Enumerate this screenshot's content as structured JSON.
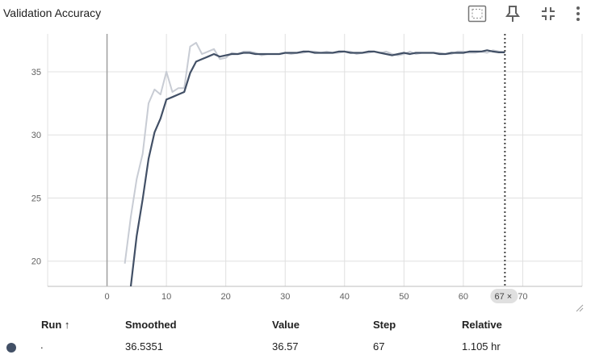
{
  "title": "Validation Accuracy",
  "toolbar": {
    "icons": [
      "fit-domain-icon",
      "pin-icon",
      "collapse-icon",
      "more-vert-icon"
    ]
  },
  "colors": {
    "smoothed": "#425066",
    "raw": "#c8ccd4",
    "grid": "#e0e0e0",
    "axis_text": "#616161",
    "cursor": "#424242",
    "run_dot": "#425066"
  },
  "chart_data": {
    "type": "line",
    "title": "Validation Accuracy",
    "xlabel": "",
    "ylabel": "",
    "xlim": [
      -10,
      80
    ],
    "ylim": [
      18,
      38
    ],
    "xticks": [
      0,
      10,
      20,
      30,
      40,
      50,
      60,
      70
    ],
    "yticks": [
      20,
      25,
      30,
      35
    ],
    "grid": true,
    "series": [
      {
        "role": "raw",
        "x": [
          3,
          4,
          5,
          6,
          7,
          8,
          9,
          10,
          11,
          12,
          13,
          14,
          15,
          16,
          17,
          18,
          19,
          20,
          21,
          22,
          23,
          24,
          25,
          26,
          27,
          28,
          29,
          30,
          31,
          32,
          33,
          34,
          35,
          36,
          37,
          38,
          39,
          40,
          41,
          42,
          43,
          44,
          45,
          46,
          47,
          48,
          49,
          50,
          51,
          52,
          53,
          54,
          55,
          56,
          57,
          58,
          59,
          60,
          61,
          62,
          63,
          64,
          65,
          66,
          67
        ],
        "y": [
          19.8,
          23.5,
          26.5,
          28.5,
          32.5,
          33.6,
          33.2,
          35.0,
          33.4,
          33.7,
          33.7,
          37.0,
          37.3,
          36.4,
          36.6,
          36.8,
          36.0,
          36.1,
          36.5,
          36.4,
          36.6,
          36.6,
          36.5,
          36.3,
          36.4,
          36.4,
          36.4,
          36.5,
          36.4,
          36.5,
          36.5,
          36.6,
          36.6,
          36.5,
          36.6,
          36.5,
          36.5,
          36.6,
          36.6,
          36.4,
          36.5,
          36.5,
          36.6,
          36.5,
          36.6,
          36.4,
          36.3,
          36.4,
          36.6,
          36.4,
          36.5,
          36.5,
          36.5,
          36.5,
          36.4,
          36.4,
          36.6,
          36.6,
          36.5,
          36.5,
          36.6,
          36.5,
          36.7,
          36.6,
          36.57
        ]
      },
      {
        "role": "smoothed",
        "x": [
          4,
          5,
          6,
          7,
          8,
          9,
          10,
          11,
          12,
          13,
          14,
          15,
          16,
          17,
          18,
          19,
          20,
          21,
          22,
          23,
          24,
          25,
          26,
          27,
          28,
          29,
          30,
          31,
          32,
          33,
          34,
          35,
          36,
          37,
          38,
          39,
          40,
          41,
          42,
          43,
          44,
          45,
          46,
          47,
          48,
          49,
          50,
          51,
          52,
          53,
          54,
          55,
          56,
          57,
          58,
          59,
          60,
          61,
          62,
          63,
          64,
          65,
          66,
          67
        ],
        "y": [
          18.0,
          22.0,
          24.9,
          28.1,
          30.2,
          31.3,
          32.8,
          33.0,
          33.2,
          33.4,
          34.9,
          35.8,
          36.0,
          36.2,
          36.4,
          36.2,
          36.3,
          36.4,
          36.4,
          36.5,
          36.5,
          36.4,
          36.4,
          36.4,
          36.4,
          36.4,
          36.5,
          36.5,
          36.5,
          36.6,
          36.6,
          36.5,
          36.5,
          36.5,
          36.5,
          36.6,
          36.6,
          36.5,
          36.5,
          36.5,
          36.6,
          36.6,
          36.5,
          36.4,
          36.3,
          36.4,
          36.5,
          36.4,
          36.5,
          36.5,
          36.5,
          36.5,
          36.4,
          36.4,
          36.5,
          36.5,
          36.5,
          36.6,
          36.6,
          36.6,
          36.7,
          36.6,
          36.5351,
          36.5351
        ]
      }
    ],
    "cursor_x": 67,
    "cursor_label": "67",
    "hover_marker": "×"
  },
  "table": {
    "headers": {
      "run": "Run ↑",
      "smoothed": "Smoothed",
      "value": "Value",
      "step": "Step",
      "relative": "Relative"
    },
    "rows": [
      {
        "run": ".",
        "smoothed": "36.5351",
        "value": "36.57",
        "step": "67",
        "relative": "1.105 hr"
      }
    ]
  }
}
